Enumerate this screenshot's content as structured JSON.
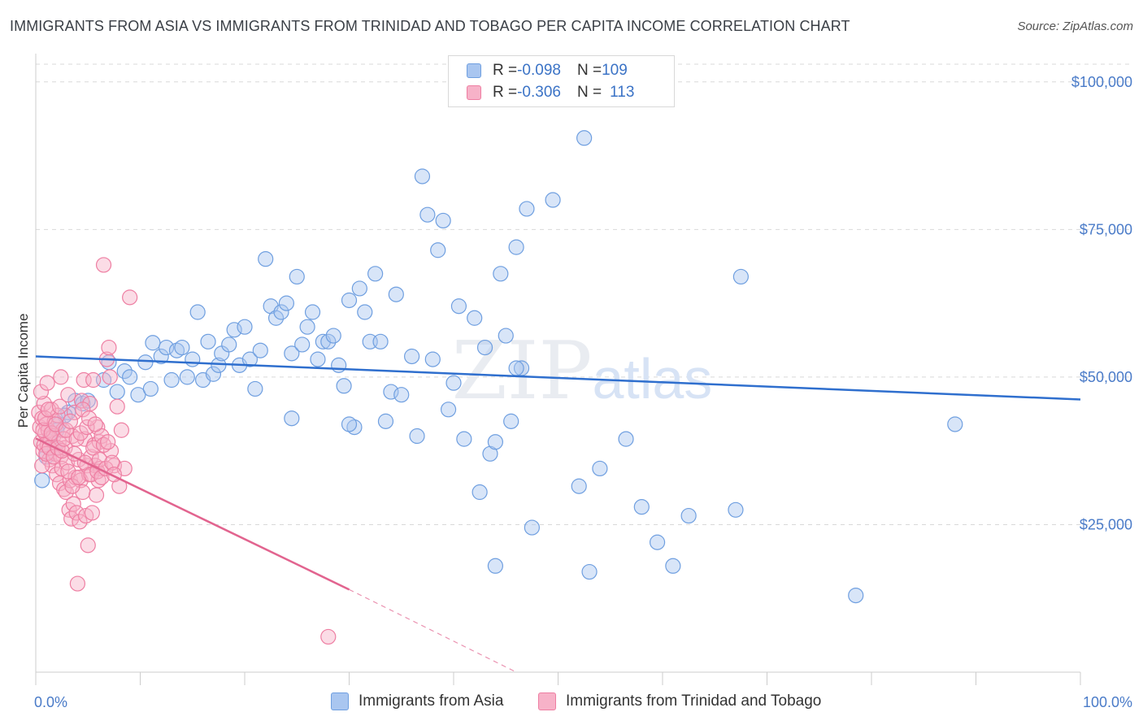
{
  "header": {
    "title": "IMMIGRANTS FROM ASIA VS IMMIGRANTS FROM TRINIDAD AND TOBAGO PER CAPITA INCOME CORRELATION CHART",
    "source": "Source: ZipAtlas.com"
  },
  "legend": {
    "rows": [
      {
        "r_label": "R = ",
        "r_value": "-0.098",
        "n_label": "N = ",
        "n_value": "109"
      },
      {
        "r_label": "R = ",
        "r_value": "-0.306",
        "n_label": "N = ",
        "n_value": "113"
      }
    ]
  },
  "watermark": {
    "part1": "ZIP",
    "part2": "atlas"
  },
  "colors": {
    "asia_fill": "#a9c6f0",
    "asia_stroke": "#6f9fe0",
    "asia_line": "#2f6fce",
    "tt_fill": "#f7b2c8",
    "tt_stroke": "#ee7ea2",
    "tt_line": "#e2648f",
    "grid": "#d9d9d9",
    "axis_text": "#4a7bc8"
  },
  "chart_data": {
    "type": "scatter",
    "title": "IMMIGRANTS FROM ASIA VS IMMIGRANTS FROM TRINIDAD AND TOBAGO PER CAPITA INCOME CORRELATION CHART",
    "xlabel": "",
    "ylabel": "Per Capita Income",
    "xlim": [
      0,
      100
    ],
    "ylim": [
      0,
      103000
    ],
    "x_tick_labels": [
      "0.0%",
      "100.0%"
    ],
    "y_ticks": [
      25000,
      50000,
      75000,
      100000
    ],
    "y_tick_labels": [
      "$25,000",
      "$50,000",
      "$75,000",
      "$100,000"
    ],
    "grid": true,
    "legend_position": "top-center",
    "series": [
      {
        "name": "Immigrants from Asia",
        "r": -0.098,
        "n": 109,
        "trend": {
          "x": [
            0,
            100
          ],
          "y": [
            53500,
            46200
          ]
        },
        "points": [
          [
            1.0,
            36500
          ],
          [
            1.8,
            38000
          ],
          [
            2.2,
            42000
          ],
          [
            3.1,
            44000
          ],
          [
            3.8,
            46000
          ],
          [
            4.5,
            45500
          ],
          [
            6.5,
            49500
          ],
          [
            7.0,
            52500
          ],
          [
            7.8,
            47500
          ],
          [
            8.5,
            51000
          ],
          [
            9.0,
            50000
          ],
          [
            9.8,
            47000
          ],
          [
            10.5,
            52500
          ],
          [
            11.0,
            48000
          ],
          [
            11.2,
            55800
          ],
          [
            12.0,
            53500
          ],
          [
            12.5,
            55000
          ],
          [
            13.0,
            49500
          ],
          [
            13.5,
            54500
          ],
          [
            14.0,
            55000
          ],
          [
            14.5,
            50000
          ],
          [
            15.0,
            53000
          ],
          [
            15.5,
            61000
          ],
          [
            16.0,
            49500
          ],
          [
            16.5,
            56000
          ],
          [
            17.0,
            50500
          ],
          [
            17.5,
            52000
          ],
          [
            17.8,
            54000
          ],
          [
            18.5,
            55500
          ],
          [
            19.0,
            58000
          ],
          [
            19.5,
            52000
          ],
          [
            20.0,
            58500
          ],
          [
            20.5,
            53000
          ],
          [
            21.0,
            48000
          ],
          [
            21.5,
            54500
          ],
          [
            22.0,
            70000
          ],
          [
            22.5,
            62000
          ],
          [
            23.0,
            60000
          ],
          [
            23.5,
            61000
          ],
          [
            24.0,
            62500
          ],
          [
            24.5,
            54000
          ],
          [
            25.0,
            67000
          ],
          [
            25.5,
            55500
          ],
          [
            26.0,
            58500
          ],
          [
            26.5,
            61000
          ],
          [
            27.0,
            53000
          ],
          [
            27.5,
            56000
          ],
          [
            28.0,
            56000
          ],
          [
            28.5,
            57000
          ],
          [
            29.0,
            52000
          ],
          [
            29.5,
            48500
          ],
          [
            30.0,
            63000
          ],
          [
            30.5,
            41500
          ],
          [
            31.0,
            65000
          ],
          [
            31.5,
            61000
          ],
          [
            32.0,
            56000
          ],
          [
            32.5,
            67500
          ],
          [
            33.0,
            56000
          ],
          [
            33.5,
            42500
          ],
          [
            34.0,
            47500
          ],
          [
            34.5,
            64000
          ],
          [
            35.0,
            47000
          ],
          [
            36.0,
            53500
          ],
          [
            36.5,
            40000
          ],
          [
            37.0,
            84000
          ],
          [
            37.5,
            77500
          ],
          [
            38.0,
            53000
          ],
          [
            38.5,
            71500
          ],
          [
            39.0,
            76500
          ],
          [
            39.5,
            44500
          ],
          [
            40.0,
            49000
          ],
          [
            40.5,
            62000
          ],
          [
            41.0,
            39500
          ],
          [
            42.0,
            60000
          ],
          [
            42.5,
            30500
          ],
          [
            43.0,
            55000
          ],
          [
            43.5,
            37000
          ],
          [
            44.0,
            39000
          ],
          [
            44.5,
            67500
          ],
          [
            45.0,
            57000
          ],
          [
            45.5,
            42500
          ],
          [
            46.0,
            72000
          ],
          [
            46.5,
            51500
          ],
          [
            47.0,
            78500
          ],
          [
            47.5,
            24500
          ],
          [
            49.5,
            80000
          ],
          [
            52.0,
            31500
          ],
          [
            52.5,
            90500
          ],
          [
            53.0,
            17000
          ],
          [
            54.0,
            34500
          ],
          [
            56.5,
            39500
          ],
          [
            58.0,
            28000
          ],
          [
            59.5,
            22000
          ],
          [
            62.5,
            26500
          ],
          [
            67.0,
            27500
          ],
          [
            67.5,
            67000
          ],
          [
            78.5,
            13000
          ],
          [
            88.0,
            42000
          ],
          [
            0.6,
            32500
          ],
          [
            1.4,
            40000
          ],
          [
            2.0,
            41000
          ],
          [
            2.8,
            43500
          ],
          [
            5.0,
            46000
          ],
          [
            30.0,
            42000
          ],
          [
            46.0,
            51500
          ],
          [
            44.0,
            18000
          ],
          [
            61.0,
            18000
          ],
          [
            24.5,
            43000
          ]
        ]
      },
      {
        "name": "Immigrants from Trinidad and Tobago",
        "r": -0.306,
        "n": 113,
        "trend": {
          "x": [
            0,
            30.0
          ],
          "y": [
            39600,
            14000
          ]
        },
        "trend_dashed": {
          "x": [
            30.0,
            46.0
          ],
          "y": [
            14000,
            0
          ]
        },
        "points": [
          [
            0.3,
            44000
          ],
          [
            0.4,
            41500
          ],
          [
            0.5,
            39000
          ],
          [
            0.6,
            43000
          ],
          [
            0.7,
            37500
          ],
          [
            0.8,
            45500
          ],
          [
            0.9,
            40500
          ],
          [
            1.0,
            42000
          ],
          [
            1.1,
            38500
          ],
          [
            1.2,
            41000
          ],
          [
            1.3,
            36000
          ],
          [
            1.4,
            39500
          ],
          [
            1.5,
            44500
          ],
          [
            1.6,
            35000
          ],
          [
            1.7,
            40000
          ],
          [
            1.8,
            42500
          ],
          [
            1.9,
            37000
          ],
          [
            2.0,
            33500
          ],
          [
            2.1,
            43500
          ],
          [
            2.2,
            39000
          ],
          [
            2.3,
            32000
          ],
          [
            2.4,
            36500
          ],
          [
            2.5,
            34500
          ],
          [
            2.6,
            41000
          ],
          [
            2.7,
            31000
          ],
          [
            2.8,
            38000
          ],
          [
            2.9,
            30500
          ],
          [
            3.0,
            35500
          ],
          [
            3.1,
            47000
          ],
          [
            3.2,
            27500
          ],
          [
            3.3,
            32500
          ],
          [
            3.4,
            26000
          ],
          [
            3.5,
            40000
          ],
          [
            3.6,
            28500
          ],
          [
            3.7,
            44000
          ],
          [
            3.8,
            33000
          ],
          [
            3.9,
            27000
          ],
          [
            4.0,
            15000
          ],
          [
            4.1,
            36000
          ],
          [
            4.2,
            25500
          ],
          [
            4.3,
            32500
          ],
          [
            4.4,
            46000
          ],
          [
            4.5,
            30500
          ],
          [
            4.6,
            49500
          ],
          [
            4.7,
            39500
          ],
          [
            4.8,
            26500
          ],
          [
            4.9,
            35000
          ],
          [
            5.0,
            21500
          ],
          [
            5.1,
            33500
          ],
          [
            5.2,
            45500
          ],
          [
            5.3,
            36500
          ],
          [
            5.4,
            27000
          ],
          [
            5.5,
            49500
          ],
          [
            5.6,
            38500
          ],
          [
            5.7,
            35000
          ],
          [
            5.8,
            30000
          ],
          [
            5.9,
            41500
          ],
          [
            6.0,
            32500
          ],
          [
            6.1,
            39000
          ],
          [
            6.2,
            34500
          ],
          [
            6.3,
            40000
          ],
          [
            6.5,
            69000
          ],
          [
            6.8,
            53000
          ],
          [
            7.0,
            55000
          ],
          [
            7.2,
            37500
          ],
          [
            7.5,
            35000
          ],
          [
            7.8,
            45000
          ],
          [
            8.0,
            31500
          ],
          [
            8.2,
            41000
          ],
          [
            8.5,
            34500
          ],
          [
            9.0,
            63500
          ],
          [
            0.5,
            47500
          ],
          [
            0.6,
            35000
          ],
          [
            0.7,
            41000
          ],
          [
            0.8,
            38500
          ],
          [
            0.9,
            43000
          ],
          [
            1.0,
            37000
          ],
          [
            1.2,
            44500
          ],
          [
            1.3,
            38000
          ],
          [
            1.5,
            40500
          ],
          [
            1.7,
            36500
          ],
          [
            1.9,
            42000
          ],
          [
            2.1,
            38000
          ],
          [
            2.3,
            45000
          ],
          [
            2.5,
            37500
          ],
          [
            2.7,
            39500
          ],
          [
            2.9,
            41000
          ],
          [
            3.1,
            34000
          ],
          [
            3.3,
            42500
          ],
          [
            3.5,
            31500
          ],
          [
            3.7,
            37000
          ],
          [
            3.9,
            39500
          ],
          [
            4.1,
            33000
          ],
          [
            4.3,
            40500
          ],
          [
            4.5,
            44500
          ],
          [
            4.7,
            35500
          ],
          [
            4.9,
            41500
          ],
          [
            5.1,
            43000
          ],
          [
            5.3,
            33500
          ],
          [
            5.5,
            38000
          ],
          [
            5.7,
            42000
          ],
          [
            5.9,
            34000
          ],
          [
            6.1,
            36000
          ],
          [
            6.3,
            33000
          ],
          [
            6.5,
            38500
          ],
          [
            6.7,
            34500
          ],
          [
            6.9,
            39000
          ],
          [
            7.1,
            50000
          ],
          [
            7.3,
            35500
          ],
          [
            7.5,
            33500
          ],
          [
            28.0,
            6000
          ],
          [
            1.1,
            49000
          ],
          [
            2.4,
            50000
          ]
        ]
      }
    ]
  },
  "bottom_legend": {
    "items": [
      {
        "label": "Immigrants from Asia"
      },
      {
        "label": "Immigrants from Trinidad and Tobago"
      }
    ]
  }
}
